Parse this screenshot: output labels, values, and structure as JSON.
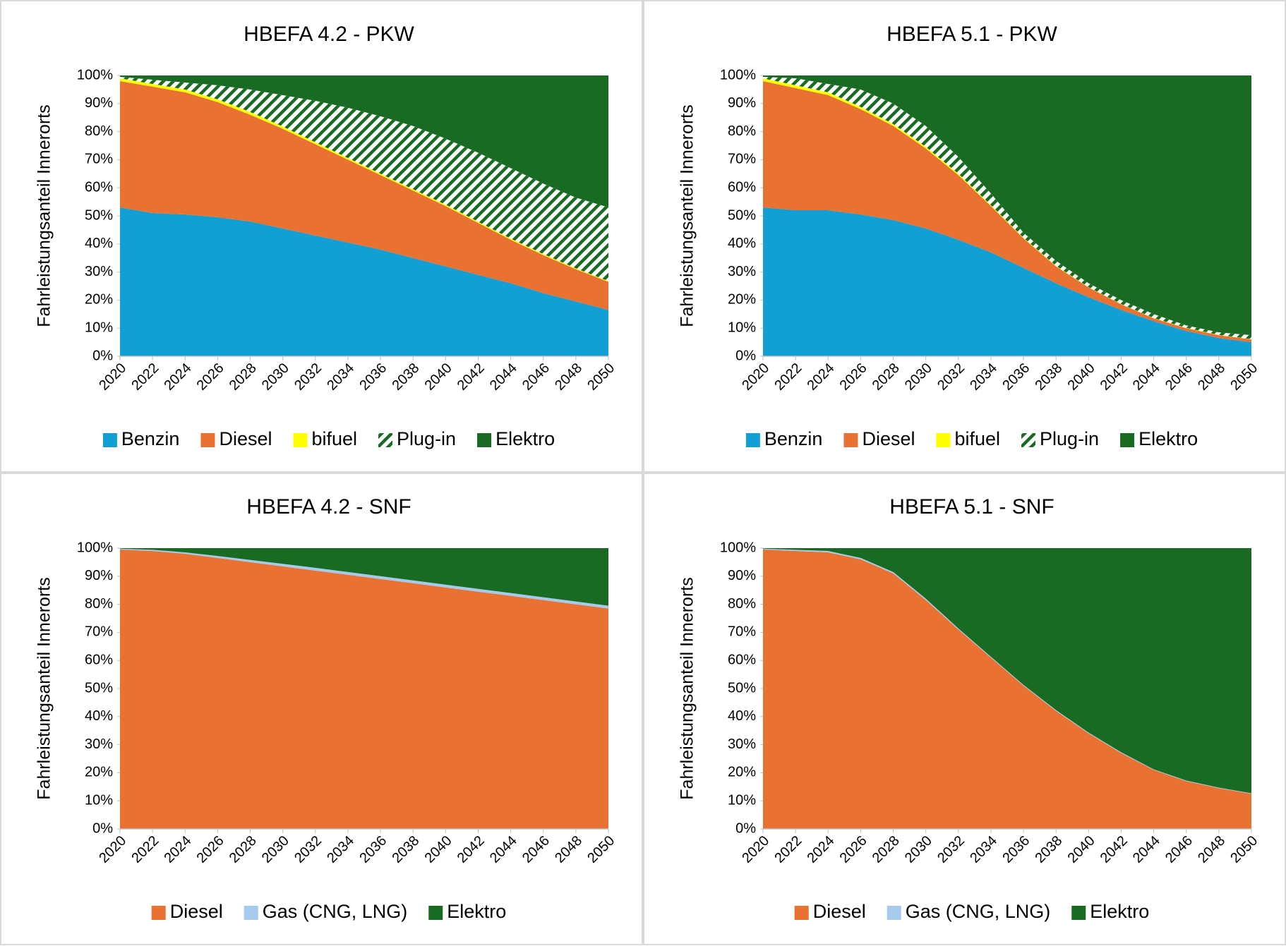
{
  "chart_data": [
    {
      "type": "stacked_area",
      "title": "HBEFA 4.2 - PKW",
      "ylabel": "Fahrleistungsanteil Innerorts",
      "x": [
        2020,
        2022,
        2024,
        2026,
        2028,
        2030,
        2032,
        2034,
        2036,
        2038,
        2040,
        2042,
        2044,
        2046,
        2048,
        2050
      ],
      "xlim": [
        2020,
        2050
      ],
      "xticks": [
        2020,
        2022,
        2024,
        2026,
        2028,
        2030,
        2032,
        2034,
        2036,
        2038,
        2040,
        2042,
        2044,
        2046,
        2048,
        2050
      ],
      "ylim": [
        0,
        100
      ],
      "yticks": [
        {
          "value": 0,
          "label": "0%"
        },
        {
          "value": 10,
          "label": "10%"
        },
        {
          "value": 20,
          "label": "20%"
        },
        {
          "value": 30,
          "label": "30%"
        },
        {
          "value": 40,
          "label": "40%"
        },
        {
          "value": 50,
          "label": "50%"
        },
        {
          "value": 60,
          "label": "60%"
        },
        {
          "value": 70,
          "label": "70%"
        },
        {
          "value": 80,
          "label": "80%"
        },
        {
          "value": 90,
          "label": "90%"
        },
        {
          "value": 100,
          "label": "100%"
        }
      ],
      "series": [
        {
          "name": "Benzin",
          "color": "#129fd4",
          "values": [
            53,
            51,
            50.5,
            49.5,
            48,
            45.5,
            43,
            40.5,
            38,
            35,
            32,
            29,
            26,
            22.5,
            19.5,
            16.5
          ]
        },
        {
          "name": "Diesel",
          "color": "#e97132",
          "values": [
            45,
            45,
            43.5,
            41,
            38,
            35.5,
            32.5,
            29.5,
            26.5,
            24,
            21.5,
            18.5,
            15.5,
            13.5,
            11.5,
            10
          ]
        },
        {
          "name": "bifuel",
          "color": "#ffff00",
          "values": [
            1,
            1,
            1,
            1,
            1,
            0.8,
            0.7,
            0.6,
            0.5,
            0.5,
            0.5,
            0.4,
            0.4,
            0.4,
            0.3,
            0.3
          ]
        },
        {
          "name": "Plug-in",
          "color": "#196b24",
          "hatch": true,
          "values": [
            0.5,
            1.5,
            2.5,
            5,
            8,
            11.2,
            14.8,
            17.9,
            20.5,
            22.5,
            23.5,
            24.6,
            25.1,
            25.1,
            25.2,
            26.2
          ]
        },
        {
          "name": "Elektro",
          "color": "#196b24",
          "values": [
            0.5,
            1.5,
            2.5,
            3.5,
            5,
            7,
            9,
            11.5,
            14.5,
            18,
            22.5,
            27.5,
            33,
            38.5,
            43.5,
            47
          ]
        }
      ]
    },
    {
      "type": "stacked_area",
      "title": "HBEFA 5.1 - PKW",
      "ylabel": "Fahrleistungsanteil Innerorts",
      "x": [
        2020,
        2022,
        2024,
        2026,
        2028,
        2030,
        2032,
        2034,
        2036,
        2038,
        2040,
        2042,
        2044,
        2046,
        2048,
        2050
      ],
      "xlim": [
        2020,
        2050
      ],
      "xticks": [
        2020,
        2022,
        2024,
        2026,
        2028,
        2030,
        2032,
        2034,
        2036,
        2038,
        2040,
        2042,
        2044,
        2046,
        2048,
        2050
      ],
      "ylim": [
        0,
        100
      ],
      "yticks": [
        {
          "value": 0,
          "label": "0%"
        },
        {
          "value": 10,
          "label": "10%"
        },
        {
          "value": 20,
          "label": "20%"
        },
        {
          "value": 30,
          "label": "30%"
        },
        {
          "value": 40,
          "label": "40%"
        },
        {
          "value": 50,
          "label": "50%"
        },
        {
          "value": 60,
          "label": "60%"
        },
        {
          "value": 70,
          "label": "70%"
        },
        {
          "value": 80,
          "label": "80%"
        },
        {
          "value": 90,
          "label": "90%"
        },
        {
          "value": 100,
          "label": "100%"
        }
      ],
      "series": [
        {
          "name": "Benzin",
          "color": "#129fd4",
          "values": [
            53,
            52,
            52,
            50.5,
            48.5,
            45.5,
            41.5,
            37,
            31.5,
            26,
            21,
            16.5,
            12.5,
            9,
            6.5,
            5
          ]
        },
        {
          "name": "Diesel",
          "color": "#e97132",
          "values": [
            45,
            43.5,
            41,
            37.5,
            33.5,
            28.5,
            23,
            16.5,
            10.5,
            6,
            3.5,
            2,
            1,
            1,
            1,
            1
          ]
        },
        {
          "name": "bifuel",
          "color": "#ffff00",
          "values": [
            1,
            1,
            1,
            0.8,
            0.7,
            0.6,
            0.5,
            0.3,
            0.2,
            0.2,
            0.1,
            0.1,
            0.1,
            0.1,
            0.1,
            0.1
          ]
        },
        {
          "name": "Plug-in",
          "color": "#196b24",
          "hatch": true,
          "values": [
            0.5,
            2.5,
            3,
            6.2,
            7.3,
            7.4,
            6,
            4.2,
            1.8,
            1.8,
            1.4,
            1.4,
            1.4,
            0.9,
            0.9,
            1.4
          ]
        },
        {
          "name": "Elektro",
          "color": "#196b24",
          "values": [
            0.5,
            1,
            3,
            5,
            10,
            18,
            29,
            42,
            56,
            66,
            74,
            80,
            85,
            89,
            91.5,
            92.5
          ]
        }
      ]
    },
    {
      "type": "stacked_area",
      "title": "HBEFA 4.2 - SNF",
      "ylabel": "Fahrleistungsanteil Innerorts",
      "x": [
        2020,
        2022,
        2024,
        2026,
        2028,
        2030,
        2032,
        2034,
        2036,
        2038,
        2040,
        2042,
        2044,
        2046,
        2048,
        2050
      ],
      "xlim": [
        2020,
        2050
      ],
      "xticks": [
        2020,
        2022,
        2024,
        2026,
        2028,
        2030,
        2032,
        2034,
        2036,
        2038,
        2040,
        2042,
        2044,
        2046,
        2048,
        2050
      ],
      "ylim": [
        0,
        100
      ],
      "yticks": [
        {
          "value": 0,
          "label": "0%"
        },
        {
          "value": 10,
          "label": "10%"
        },
        {
          "value": 20,
          "label": "20%"
        },
        {
          "value": 30,
          "label": "30%"
        },
        {
          "value": 40,
          "label": "40%"
        },
        {
          "value": 50,
          "label": "50%"
        },
        {
          "value": 60,
          "label": "60%"
        },
        {
          "value": 70,
          "label": "70%"
        },
        {
          "value": 80,
          "label": "80%"
        },
        {
          "value": 90,
          "label": "90%"
        },
        {
          "value": 100,
          "label": "100%"
        }
      ],
      "series": [
        {
          "name": "Diesel",
          "color": "#e97132",
          "values": [
            99.5,
            99,
            98,
            96.5,
            95,
            93.5,
            92,
            90.5,
            89,
            87.5,
            86,
            84.5,
            83,
            81.5,
            80,
            78.5
          ]
        },
        {
          "name": "Gas (CNG, LNG)",
          "color": "#a6caec",
          "values": [
            0.3,
            0.4,
            0.5,
            0.7,
            0.8,
            0.9,
            1,
            1,
            1,
            1,
            1,
            1,
            1,
            1,
            1,
            1
          ]
        },
        {
          "name": "Elektro",
          "color": "#196b24",
          "values": [
            0.2,
            0.6,
            1.5,
            2.8,
            4.2,
            5.6,
            7,
            8.5,
            10,
            11.5,
            13,
            14.5,
            16,
            17.5,
            19,
            20.5
          ]
        }
      ]
    },
    {
      "type": "stacked_area",
      "title": "HBEFA 5.1 - SNF",
      "ylabel": "Fahrleistungsanteil Innerorts",
      "x": [
        2020,
        2022,
        2024,
        2026,
        2028,
        2030,
        2032,
        2034,
        2036,
        2038,
        2040,
        2042,
        2044,
        2046,
        2048,
        2050
      ],
      "xlim": [
        2020,
        2050
      ],
      "xticks": [
        2020,
        2022,
        2024,
        2026,
        2028,
        2030,
        2032,
        2034,
        2036,
        2038,
        2040,
        2042,
        2044,
        2046,
        2048,
        2050
      ],
      "ylim": [
        0,
        100
      ],
      "yticks": [
        {
          "value": 0,
          "label": "0%"
        },
        {
          "value": 10,
          "label": "10%"
        },
        {
          "value": 20,
          "label": "20%"
        },
        {
          "value": 30,
          "label": "30%"
        },
        {
          "value": 40,
          "label": "40%"
        },
        {
          "value": 50,
          "label": "50%"
        },
        {
          "value": 60,
          "label": "60%"
        },
        {
          "value": 70,
          "label": "70%"
        },
        {
          "value": 80,
          "label": "80%"
        },
        {
          "value": 90,
          "label": "90%"
        },
        {
          "value": 100,
          "label": "100%"
        }
      ],
      "series": [
        {
          "name": "Diesel",
          "color": "#e97132",
          "values": [
            99.5,
            99,
            98.5,
            96,
            91,
            81.5,
            71,
            61,
            51,
            42,
            34,
            27,
            21,
            17,
            14.5,
            12.5
          ]
        },
        {
          "name": "Gas (CNG, LNG)",
          "color": "#a6caec",
          "values": [
            0.3,
            0.4,
            0.5,
            0.5,
            0.5,
            0.5,
            0.4,
            0.3,
            0.3,
            0.3,
            0.3,
            0.3,
            0.2,
            0.2,
            0.2,
            0.2
          ]
        },
        {
          "name": "Elektro",
          "color": "#196b24",
          "values": [
            0.2,
            0.6,
            1,
            3.5,
            8.5,
            18,
            28.6,
            38.7,
            48.7,
            57.7,
            65.7,
            72.7,
            78.8,
            82.8,
            85.3,
            87.3
          ]
        }
      ]
    }
  ]
}
